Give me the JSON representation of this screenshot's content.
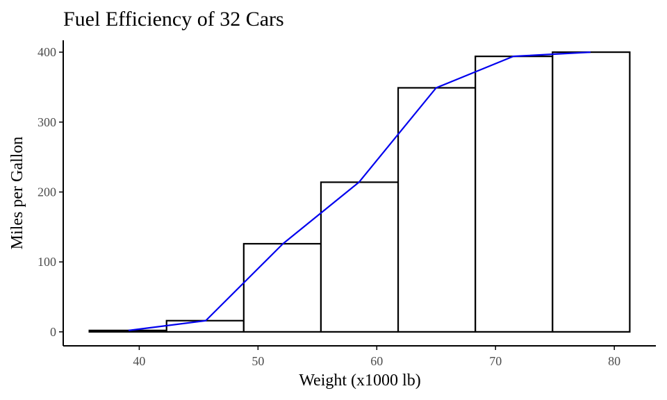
{
  "chart_data": {
    "type": "bar",
    "title": "Fuel Efficiency of 32 Cars",
    "xlabel": "Weight (x1000 lb)",
    "ylabel": "Miles per Gallon",
    "xlim": [
      33.6,
      83.5
    ],
    "ylim": [
      -20,
      417
    ],
    "x_ticks": [
      40,
      50,
      60,
      70,
      80
    ],
    "y_ticks": [
      0,
      100,
      200,
      300,
      400
    ],
    "grid": false,
    "bars": [
      {
        "x0": 35.8,
        "x1": 42.3,
        "value": 2
      },
      {
        "x0": 42.3,
        "x1": 48.8,
        "value": 16
      },
      {
        "x0": 48.8,
        "x1": 55.3,
        "value": 126
      },
      {
        "x0": 55.3,
        "x1": 61.8,
        "value": 214
      },
      {
        "x0": 61.8,
        "x1": 68.3,
        "value": 349
      },
      {
        "x0": 68.3,
        "x1": 74.8,
        "value": 394
      },
      {
        "x0": 74.8,
        "x1": 81.3,
        "value": 400
      }
    ],
    "line": {
      "color": "#0000ee",
      "points": [
        {
          "x": 39.1,
          "y": 2
        },
        {
          "x": 45.6,
          "y": 16
        },
        {
          "x": 52.1,
          "y": 126
        },
        {
          "x": 58.5,
          "y": 214
        },
        {
          "x": 65.0,
          "y": 349
        },
        {
          "x": 71.5,
          "y": 394
        },
        {
          "x": 78.0,
          "y": 400
        }
      ]
    },
    "bar_fill": "#ffffff",
    "bar_stroke": "#000000"
  }
}
